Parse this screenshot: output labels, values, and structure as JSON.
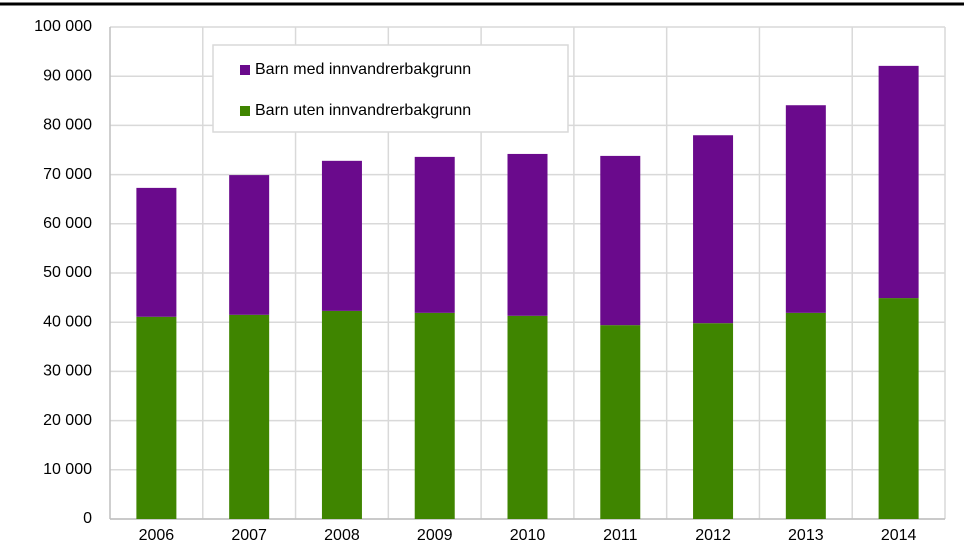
{
  "chart_data": {
    "type": "stacked_bar",
    "categories": [
      "2006",
      "2007",
      "2008",
      "2009",
      "2010",
      "2011",
      "2012",
      "2013",
      "2014"
    ],
    "series": [
      {
        "name": "Barn uten innvandrerbakgrunn",
        "color": "#3f8500",
        "values": [
          41100,
          41500,
          42300,
          41900,
          41300,
          39400,
          39800,
          41900,
          44900
        ]
      },
      {
        "name": "Barn med innvandrerbakgrunn",
        "color": "#6a0a8c",
        "values": [
          26200,
          28400,
          30500,
          31700,
          32900,
          34400,
          38200,
          42200,
          47200
        ]
      }
    ],
    "ylim": [
      0,
      100000
    ],
    "yticks": [
      0,
      {
        "value": 10000,
        "label": "10 000"
      },
      {
        "value": 20000,
        "label": "20 000"
      },
      {
        "value": 30000,
        "label": "30 000"
      },
      {
        "value": 40000,
        "label": "40 000"
      },
      {
        "value": 50000,
        "label": "50 000"
      },
      {
        "value": 60000,
        "label": "60 000"
      },
      {
        "value": 70000,
        "label": "70 000"
      },
      {
        "value": 80000,
        "label": "80 000"
      },
      {
        "value": 90000,
        "label": "90 000"
      },
      {
        "value": 100000,
        "label": "100 000"
      }
    ],
    "grid": true,
    "legend": "top-left"
  }
}
